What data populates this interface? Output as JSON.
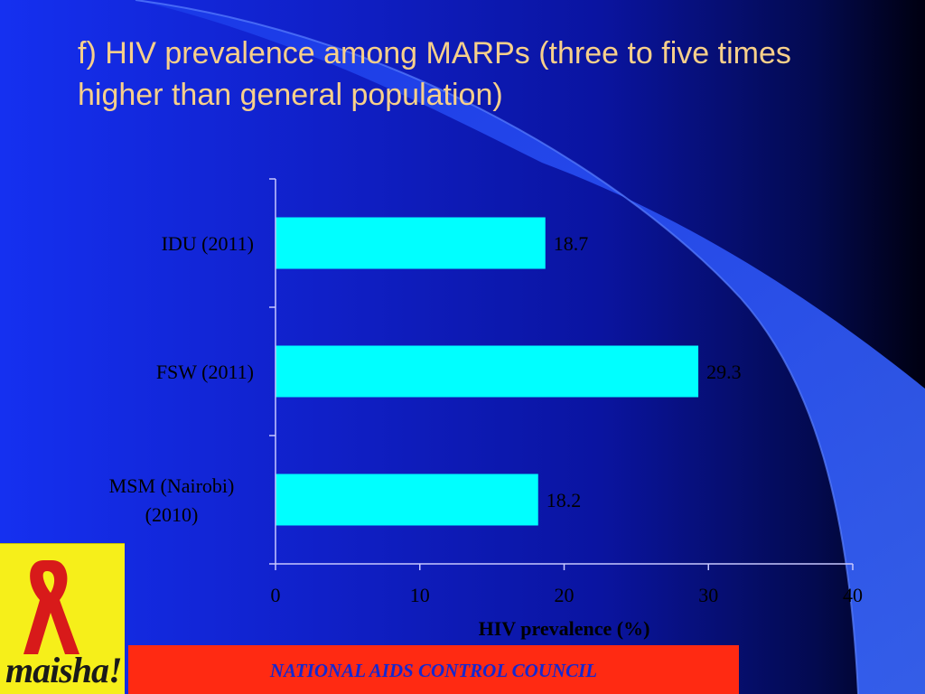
{
  "slide": {
    "title": "f)  HIV prevalence among MARPs (three to five times higher than general population)",
    "footer": "NATIONAL AIDS CONTROL COUNCIL",
    "logo_text": "maisha!"
  },
  "colors": {
    "bar": "#00ffff",
    "title": "#f8d08a",
    "chart_text": "#000000",
    "axis": "#c8c8ff",
    "footer_band": "#ff2a12",
    "footer_text": "#1428d0",
    "logo_bg": "#f6ef1a"
  },
  "chart_data": {
    "type": "bar",
    "orientation": "horizontal",
    "categories": [
      "IDU (2011)",
      "FSW (2011)",
      "MSM (Nairobi) (2010)"
    ],
    "category_lines": [
      [
        "IDU (2011)"
      ],
      [
        "FSW (2011)"
      ],
      [
        "MSM (Nairobi)",
        "(2010)"
      ]
    ],
    "values": [
      18.7,
      29.3,
      18.2
    ],
    "data_labels": [
      "18.7",
      "29.3",
      "18.2"
    ],
    "title": "",
    "xlabel": "HIV prevalence (%)",
    "ylabel": "",
    "xlim": [
      0,
      40
    ],
    "xticks": [
      0,
      10,
      20,
      30,
      40
    ],
    "grid": false,
    "legend": "none"
  }
}
